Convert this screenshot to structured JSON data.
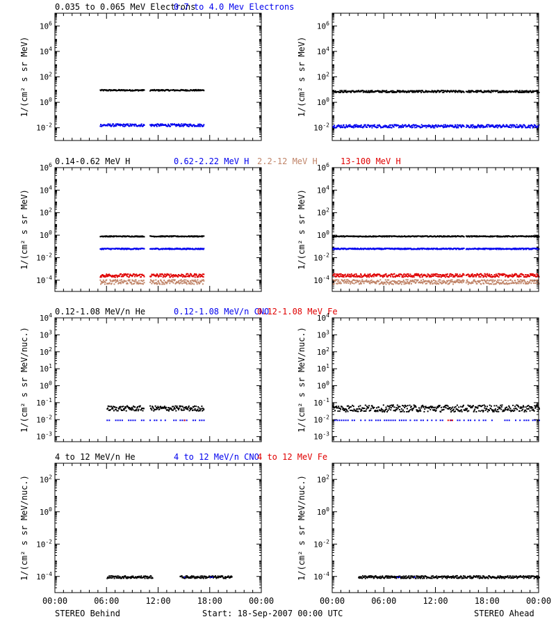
{
  "figure": {
    "footer": {
      "left": "STEREO Behind",
      "center": "Start: 18-Sep-2007 00:00 UTC",
      "right": "STEREO Ahead"
    },
    "x_tick_labels": [
      "00:00",
      "06:00",
      "12:00",
      "18:00",
      "00:00"
    ]
  },
  "colors": {
    "black": "#000000",
    "blue": "#0000ee",
    "tan": "#c08468",
    "red": "#e00000"
  },
  "chart_data": [
    {
      "type": "scatter",
      "row": 1,
      "side": "STEREO Behind",
      "ylabel": "1/(cm² s sr MeV)",
      "ylim": [
        0.001,
        10000000
      ],
      "yscale": "log",
      "y_tick_labels": [
        "10^-2",
        "10^0",
        "10^2",
        "10^4",
        "10^6"
      ],
      "xlim_hours": [
        0,
        24
      ],
      "row_title": [
        {
          "text": "0.035 to 0.065 MeV Electrons",
          "color": "black"
        },
        {
          "text": "0.7 to 4.0 Mev Electrons",
          "color": "blue"
        }
      ],
      "series": [
        {
          "name": "0.035 to 0.065 MeV Electrons",
          "color": "black",
          "y": 10,
          "spread_dex": 0.05,
          "segments": [
            [
              5.2,
              10.3
            ],
            [
              11.0,
              17.3
            ]
          ]
        },
        {
          "name": "0.7 to 4.0 Mev Electrons",
          "color": "blue",
          "y": 0.018,
          "spread_dex": 0.1,
          "segments": [
            [
              5.2,
              10.3
            ],
            [
              11.0,
              17.3
            ]
          ]
        }
      ]
    },
    {
      "type": "scatter",
      "row": 1,
      "side": "STEREO Ahead",
      "ylabel": "1/(cm² s sr MeV)",
      "ylim": [
        0.001,
        10000000
      ],
      "yscale": "log",
      "y_tick_labels": [
        "10^-2",
        "10^0",
        "10^2",
        "10^4",
        "10^6"
      ],
      "xlim_hours": [
        0,
        24
      ],
      "series": [
        {
          "name": "0.035 to 0.065 MeV Electrons",
          "color": "black",
          "y": 8,
          "spread_dex": 0.08,
          "segments": [
            [
              0,
              15.3
            ],
            [
              15.5,
              24
            ]
          ]
        },
        {
          "name": "0.7 to 4.0 Mev Electrons",
          "color": "blue",
          "y": 0.015,
          "spread_dex": 0.12,
          "segments": [
            [
              0,
              15.3
            ],
            [
              15.5,
              24
            ]
          ]
        }
      ]
    },
    {
      "type": "scatter",
      "row": 2,
      "side": "STEREO Behind",
      "ylabel": "1/(cm² s sr MeV)",
      "ylim": [
        1e-05,
        1000000
      ],
      "yscale": "log",
      "y_tick_labels": [
        "10^-4",
        "10^-2",
        "10^0",
        "10^2",
        "10^4",
        "10^6"
      ],
      "xlim_hours": [
        0,
        24
      ],
      "row_title": [
        {
          "text": "0.14-0.62 MeV H",
          "color": "black"
        },
        {
          "text": "0.62-2.22 MeV H",
          "color": "blue"
        },
        {
          "text": "2.2-12 MeV H",
          "color": "tan"
        },
        {
          "text": "13-100 MeV H",
          "color": "red"
        }
      ],
      "series": [
        {
          "name": "0.14-0.62 MeV H",
          "color": "black",
          "y": 0.9,
          "spread_dex": 0.04,
          "segments": [
            [
              5.2,
              10.3
            ],
            [
              11.0,
              17.3
            ]
          ]
        },
        {
          "name": "0.62-2.22 MeV H",
          "color": "blue",
          "y": 0.07,
          "spread_dex": 0.05,
          "segments": [
            [
              5.2,
              10.3
            ],
            [
              11.0,
              17.3
            ]
          ]
        },
        {
          "name": "2.2-12 MeV H",
          "color": "tan",
          "y": 8e-05,
          "spread_dex": 0.2,
          "segments": [
            [
              5.2,
              10.3
            ],
            [
              11.0,
              17.3
            ]
          ]
        },
        {
          "name": "13-100 MeV H",
          "color": "red",
          "y": 0.0003,
          "spread_dex": 0.15,
          "segments": [
            [
              5.2,
              10.3
            ],
            [
              11.0,
              17.3
            ]
          ]
        }
      ]
    },
    {
      "type": "scatter",
      "row": 2,
      "side": "STEREO Ahead",
      "ylabel": "1/(cm² s sr MeV)",
      "ylim": [
        1e-05,
        1000000
      ],
      "yscale": "log",
      "y_tick_labels": [
        "10^-4",
        "10^-2",
        "10^0",
        "10^2",
        "10^4",
        "10^6"
      ],
      "xlim_hours": [
        0,
        24
      ],
      "series": [
        {
          "name": "0.14-0.62 MeV H",
          "color": "black",
          "y": 0.9,
          "spread_dex": 0.04,
          "segments": [
            [
              0,
              15.3
            ],
            [
              15.5,
              24
            ]
          ]
        },
        {
          "name": "0.62-2.22 MeV H",
          "color": "blue",
          "y": 0.07,
          "spread_dex": 0.05,
          "segments": [
            [
              0,
              15.3
            ],
            [
              15.5,
              24
            ]
          ]
        },
        {
          "name": "2.2-12 MeV H",
          "color": "tan",
          "y": 8e-05,
          "spread_dex": 0.2,
          "segments": [
            [
              0,
              15.3
            ],
            [
              15.5,
              24
            ]
          ]
        },
        {
          "name": "13-100 MeV H",
          "color": "red",
          "y": 0.0003,
          "spread_dex": 0.15,
          "segments": [
            [
              0,
              15.3
            ],
            [
              15.5,
              24
            ]
          ]
        }
      ]
    },
    {
      "type": "scatter",
      "row": 3,
      "side": "STEREO Behind",
      "ylabel": "1/(cm² s sr MeV/nuc.)",
      "ylim": [
        0.0005,
        10000
      ],
      "yscale": "log",
      "y_tick_labels": [
        "10^-3",
        "10^-2",
        "10^-1",
        "10^0",
        "10^1",
        "10^2",
        "10^3",
        "10^4"
      ],
      "xlim_hours": [
        0,
        24
      ],
      "row_title": [
        {
          "text": "0.12-1.08 MeV/n He",
          "color": "black"
        },
        {
          "text": "0.12-1.08 MeV/n CNO",
          "color": "blue"
        },
        {
          "text": "0.12-1.08 MeV Fe",
          "color": "red"
        }
      ],
      "series": [
        {
          "name": "0.12-1.08 MeV/n He",
          "color": "black",
          "y": 0.05,
          "spread_dex": 0.15,
          "segments": [
            [
              6.0,
              10.3
            ],
            [
              11.0,
              17.3
            ]
          ]
        },
        {
          "name": "0.12-1.08 MeV/n CNO",
          "color": "blue",
          "y": 0.01,
          "spread_dex": 0.0,
          "segments": [
            [
              6.0,
              10.3
            ],
            [
              11.0,
              17.3
            ]
          ]
        },
        {
          "name": "0.12-1.08 MeV Fe",
          "color": "red",
          "y": 0.01,
          "spread_dex": 0.0,
          "segments": [
            [
              6.0,
              6.2
            ],
            [
              15.0,
              15.4
            ]
          ]
        }
      ]
    },
    {
      "type": "scatter",
      "row": 3,
      "side": "STEREO Ahead",
      "ylabel": "1/(cm² s sr MeV/nuc.)",
      "ylim": [
        0.0005,
        10000
      ],
      "yscale": "log",
      "y_tick_labels": [
        "10^-3",
        "10^-2",
        "10^-1",
        "10^0",
        "10^1",
        "10^2",
        "10^3",
        "10^4"
      ],
      "xlim_hours": [
        0,
        24
      ],
      "series": [
        {
          "name": "0.12-1.08 MeV/n He",
          "color": "black",
          "y": 0.05,
          "spread_dex": 0.2,
          "segments": [
            [
              0,
              24
            ]
          ]
        },
        {
          "name": "0.12-1.08 MeV/n CNO",
          "color": "blue",
          "y": 0.01,
          "spread_dex": 0.0,
          "segments": [
            [
              0,
              24
            ]
          ]
        },
        {
          "name": "0.12-1.08 MeV Fe",
          "color": "red",
          "y": 0.01,
          "spread_dex": 0.0,
          "segments": [
            [
              13.4,
              13.9
            ],
            [
              18.3,
              18.6
            ]
          ]
        }
      ]
    },
    {
      "type": "scatter",
      "row": 4,
      "side": "STEREO Behind",
      "ylabel": "1/(cm² s sr MeV/nuc.)",
      "ylim": [
        1e-05,
        1000
      ],
      "yscale": "log",
      "y_tick_labels": [
        "10^-4",
        "10^-2",
        "10^0",
        "10^2"
      ],
      "xlim_hours": [
        0,
        24
      ],
      "row_title": [
        {
          "text": "4 to 12 MeV/n He",
          "color": "black"
        },
        {
          "text": "4 to 12 MeV/n CNO",
          "color": "blue"
        },
        {
          "text": "4 to 12 MeV Fe",
          "color": "red"
        }
      ],
      "series": [
        {
          "name": "4 to 12 MeV/n He",
          "color": "black",
          "y": 0.0001,
          "spread_dex": 0.08,
          "segments": [
            [
              6.0,
              11.3
            ],
            [
              14.5,
              20.5
            ]
          ]
        },
        {
          "name": "4 to 12 MeV/n CNO",
          "color": "blue",
          "y": 0.0001,
          "spread_dex": 0.0,
          "segments": [
            [
              15.0,
              15.3
            ],
            [
              18.0,
              18.3
            ]
          ]
        },
        {
          "name": "4 to 12 MeV Fe",
          "color": "red",
          "y": 0.0001,
          "spread_dex": 0.0,
          "segments": []
        }
      ]
    },
    {
      "type": "scatter",
      "row": 4,
      "side": "STEREO Ahead",
      "ylabel": "1/(cm² s sr MeV/nuc.)",
      "ylim": [
        1e-05,
        1000
      ],
      "yscale": "log",
      "y_tick_labels": [
        "10^-4",
        "10^-2",
        "10^0",
        "10^2"
      ],
      "xlim_hours": [
        0,
        24
      ],
      "series": [
        {
          "name": "4 to 12 MeV/n He",
          "color": "black",
          "y": 0.0001,
          "spread_dex": 0.08,
          "segments": [
            [
              3.0,
              24
            ]
          ]
        },
        {
          "name": "4 to 12 MeV/n CNO",
          "color": "blue",
          "y": 0.0001,
          "spread_dex": 0.0,
          "segments": [
            [
              7.5,
              7.8
            ],
            [
              9.5,
              9.8
            ]
          ]
        },
        {
          "name": "4 to 12 MeV Fe",
          "color": "red",
          "y": 0.0001,
          "spread_dex": 0.0,
          "segments": []
        }
      ]
    }
  ]
}
